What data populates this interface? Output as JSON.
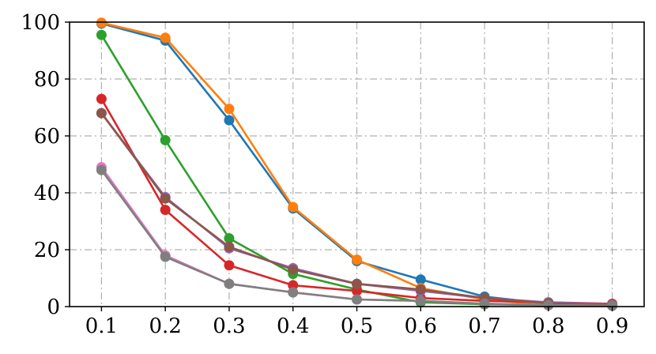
{
  "chart_data": {
    "type": "line",
    "title": "",
    "xlabel": "",
    "ylabel": "",
    "x": [
      0.1,
      0.2,
      0.3,
      0.4,
      0.5,
      0.6,
      0.7,
      0.8,
      0.9
    ],
    "x_tick_labels": [
      "0.1",
      "0.2",
      "0.3",
      "0.4",
      "0.5",
      "0.6",
      "0.7",
      "0.8",
      "0.9"
    ],
    "y_tick_labels": [
      "0",
      "20",
      "40",
      "60",
      "80",
      "100"
    ],
    "y_ticks": [
      0,
      20,
      40,
      60,
      80,
      100
    ],
    "xlim": [
      0.05,
      0.95
    ],
    "ylim": [
      0,
      100
    ],
    "grid": true,
    "legend": "none",
    "series": [
      {
        "color": "#1f77b4",
        "values": [
          99.5,
          93.5,
          65.5,
          34.5,
          16,
          9.5,
          3.5,
          1,
          0.5
        ]
      },
      {
        "color": "#ff7f0e",
        "values": [
          99.8,
          94.5,
          69.5,
          35,
          16.5,
          6.5,
          2.5,
          0.5,
          0.3
        ]
      },
      {
        "color": "#2ca02c",
        "values": [
          95.5,
          58.5,
          24,
          11.5,
          6,
          1.5,
          0.8,
          0.5,
          0.3
        ]
      },
      {
        "color": "#d62728",
        "values": [
          73,
          34,
          14.5,
          7.5,
          5.5,
          3,
          2,
          1.5,
          1
        ]
      },
      {
        "color": "#9467bd",
        "values": [
          68,
          38.5,
          20.5,
          13.5,
          8,
          5.5,
          3,
          1.5,
          0.8
        ]
      },
      {
        "color": "#8c564b",
        "values": [
          68,
          38,
          21,
          13,
          8,
          6,
          3,
          1.2,
          0.6
        ]
      },
      {
        "color": "#e377c2",
        "values": [
          49,
          18,
          8,
          5,
          2.5,
          2,
          1,
          0.5,
          0.3
        ]
      },
      {
        "color": "#7f7f7f",
        "values": [
          48,
          17.5,
          8,
          5,
          2.5,
          2,
          1,
          0.5,
          0.3
        ]
      }
    ]
  }
}
